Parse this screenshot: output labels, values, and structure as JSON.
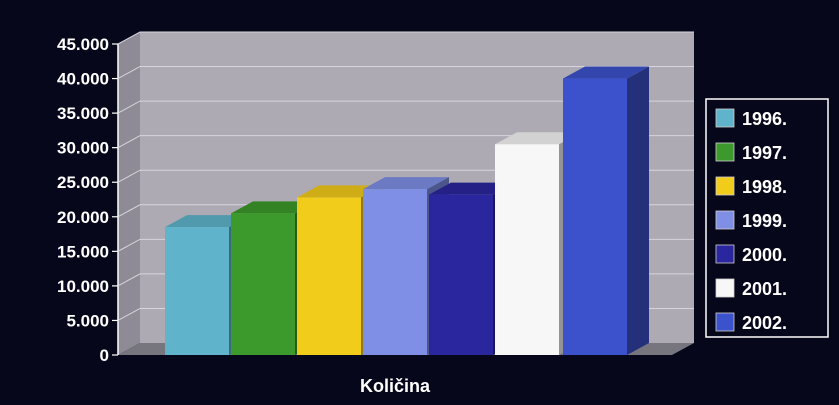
{
  "chart_data": {
    "type": "bar",
    "categories": [
      "Količina"
    ],
    "xlabel": "Količina",
    "ylabel": "",
    "ylim": [
      0,
      45000
    ],
    "yticks": [
      "0",
      "5.000",
      "10.000",
      "15.000",
      "20.000",
      "25.000",
      "30.000",
      "35.000",
      "40.000",
      "45.000"
    ],
    "grid": true,
    "legend_position": "right",
    "series": [
      {
        "name": "1996.",
        "values": [
          18500
        ],
        "color": "#5fb4cc"
      },
      {
        "name": "1997.",
        "values": [
          20500
        ],
        "color": "#3c9a2c"
      },
      {
        "name": "1998.",
        "values": [
          22800
        ],
        "color": "#f2cc1a"
      },
      {
        "name": "1999.",
        "values": [
          24000
        ],
        "color": "#7f8fe6"
      },
      {
        "name": "2000.",
        "values": [
          23200
        ],
        "color": "#2a269e"
      },
      {
        "name": "2001.",
        "values": [
          30500
        ],
        "color": "#f7f7f7"
      },
      {
        "name": "2002.",
        "values": [
          40000
        ],
        "color": "#3c52cc"
      }
    ]
  }
}
